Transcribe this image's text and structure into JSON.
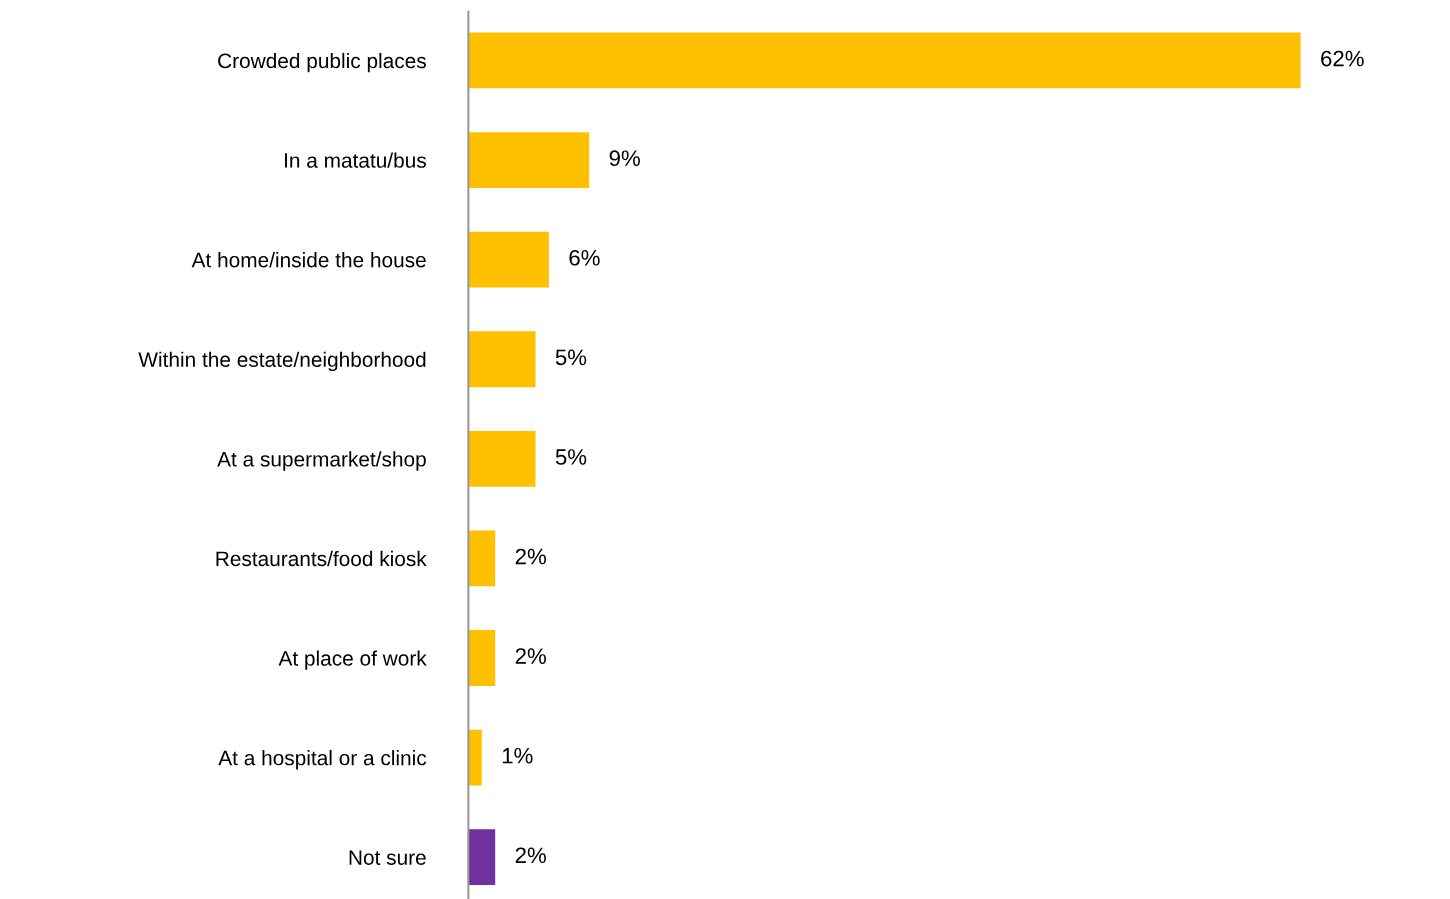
{
  "chart_data": {
    "type": "bar",
    "orientation": "horizontal",
    "categories": [
      "Crowded public places",
      "In a matatu/bus",
      "At home/inside the house",
      "Within the estate/neighborhood",
      "At a supermarket/shop",
      "Restaurants/food kiosk",
      "At place of work",
      "At a hospital or a clinic",
      "Not sure"
    ],
    "values": [
      62,
      9,
      6,
      5,
      5,
      2,
      2,
      1,
      2
    ],
    "colors": [
      "#ffc000",
      "#ffc000",
      "#ffc000",
      "#ffc000",
      "#ffc000",
      "#ffc000",
      "#ffc000",
      "#ffc000",
      "#7030a0"
    ],
    "value_labels": [
      "62%",
      "9%",
      "6%",
      "5%",
      "5%",
      "2%",
      "2%",
      "1%",
      "2%"
    ],
    "tick_labels": "y",
    "grid": false,
    "legend": false
  }
}
